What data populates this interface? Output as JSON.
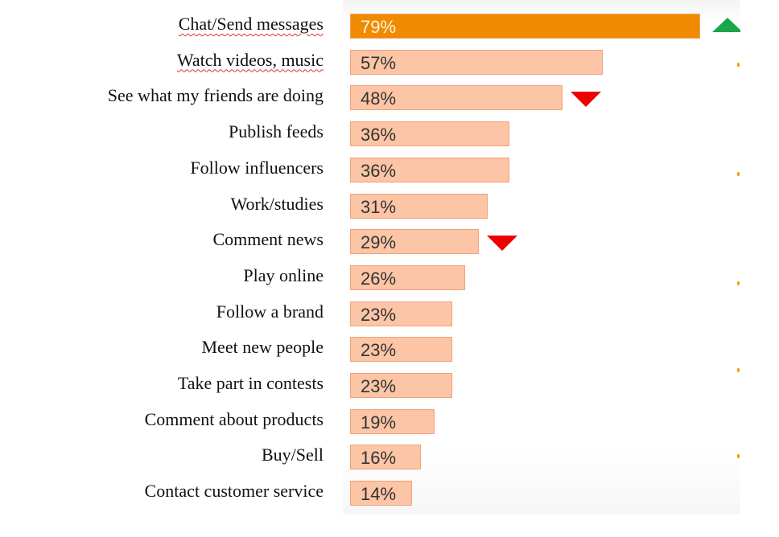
{
  "chart_data": {
    "type": "bar",
    "orientation": "horizontal",
    "categories": [
      "Chat/Send messages",
      "Watch videos, music",
      "See what my friends are doing",
      "Publish feeds",
      "Follow influencers",
      "Work/studies",
      "Comment news",
      "Play online",
      "Follow a brand",
      "Meet new people",
      "Take part in contests",
      "Comment about products",
      "Buy/Sell",
      "Contact customer service"
    ],
    "values": [
      79,
      57,
      48,
      36,
      36,
      31,
      29,
      26,
      23,
      23,
      23,
      19,
      16,
      14
    ],
    "value_labels": [
      "79%",
      "57%",
      "48%",
      "36%",
      "36%",
      "31%",
      "29%",
      "26%",
      "23%",
      "23%",
      "23%",
      "19%",
      "16%",
      "14%"
    ],
    "unit": "%",
    "xlim": [
      0,
      100
    ],
    "grid": false,
    "highlighted_category": "Chat/Send messages",
    "trend_markers": [
      {
        "category": "Chat/Send messages",
        "direction": "up",
        "color": "#1aa64a"
      },
      {
        "category": "See what my friends are doing",
        "direction": "down",
        "color": "#ee0000"
      },
      {
        "category": "Comment news",
        "direction": "down",
        "color": "#ee0000"
      }
    ],
    "colors": {
      "highlight": "#f08a00",
      "bar": "#fcc5a6",
      "bar_border": "#f3a07a"
    }
  }
}
